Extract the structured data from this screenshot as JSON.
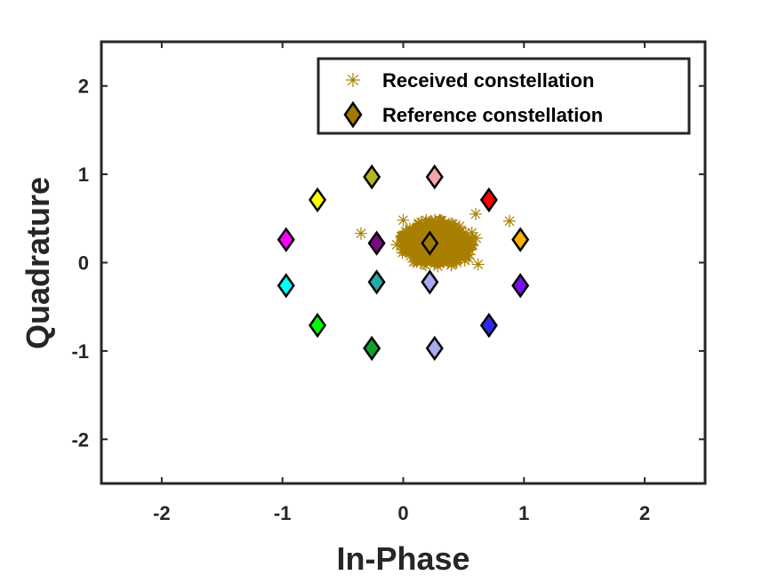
{
  "chart_data": {
    "type": "scatter",
    "title": "",
    "xlabel": "In-Phase",
    "ylabel": "Quadrature",
    "xlim": [
      -2.5,
      2.5
    ],
    "ylim": [
      -2.5,
      2.5
    ],
    "xticks": [
      -2,
      -1,
      0,
      1,
      2
    ],
    "yticks": [
      -2,
      -1,
      0,
      1,
      2
    ],
    "xtick_labels": [
      "-2",
      "-1",
      "0",
      "1",
      "2"
    ],
    "ytick_labels": [
      "-2",
      "-1",
      "0",
      "1",
      "2"
    ],
    "grid": false,
    "legend_position": "top-right",
    "series": [
      {
        "name": "Received constellation",
        "marker": "asterisk",
        "color": "#a87f00",
        "cluster": {
          "center": [
            0.28,
            0.22
          ],
          "spread_x": 0.2,
          "spread_y": 0.16,
          "count": 1200
        },
        "outliers": [
          [
            0.88,
            0.47
          ],
          [
            -0.35,
            0.33
          ],
          [
            0.6,
            0.55
          ],
          [
            0.0,
            0.48
          ],
          [
            0.62,
            -0.02
          ]
        ]
      },
      {
        "name": "Reference constellation",
        "marker": "diamond",
        "color": "#a07b00",
        "edge_color": "#000000",
        "points": [
          {
            "x": -0.26,
            "y": 0.97,
            "color": "#b5b51e"
          },
          {
            "x": 0.26,
            "y": 0.97,
            "color": "#f4a7a7"
          },
          {
            "x": -0.71,
            "y": 0.71,
            "color": "#ffff00"
          },
          {
            "x": 0.71,
            "y": 0.71,
            "color": "#ff0000"
          },
          {
            "x": -0.97,
            "y": 0.26,
            "color": "#ff00ff"
          },
          {
            "x": -0.22,
            "y": 0.22,
            "color": "#7a0a80"
          },
          {
            "x": 0.22,
            "y": 0.22,
            "color": "#a07b00"
          },
          {
            "x": 0.97,
            "y": 0.26,
            "color": "#ffb000"
          },
          {
            "x": -0.97,
            "y": -0.26,
            "color": "#00ffff"
          },
          {
            "x": -0.22,
            "y": -0.22,
            "color": "#24aaaa"
          },
          {
            "x": 0.22,
            "y": -0.22,
            "color": "#aaaaf0"
          },
          {
            "x": 0.97,
            "y": -0.26,
            "color": "#7a10f0"
          },
          {
            "x": -0.71,
            "y": -0.71,
            "color": "#00ff00"
          },
          {
            "x": 0.71,
            "y": -0.71,
            "color": "#2a2af0"
          },
          {
            "x": -0.26,
            "y": -0.97,
            "color": "#10a030"
          },
          {
            "x": 0.26,
            "y": -0.97,
            "color": "#aaaaf0"
          }
        ]
      }
    ]
  }
}
